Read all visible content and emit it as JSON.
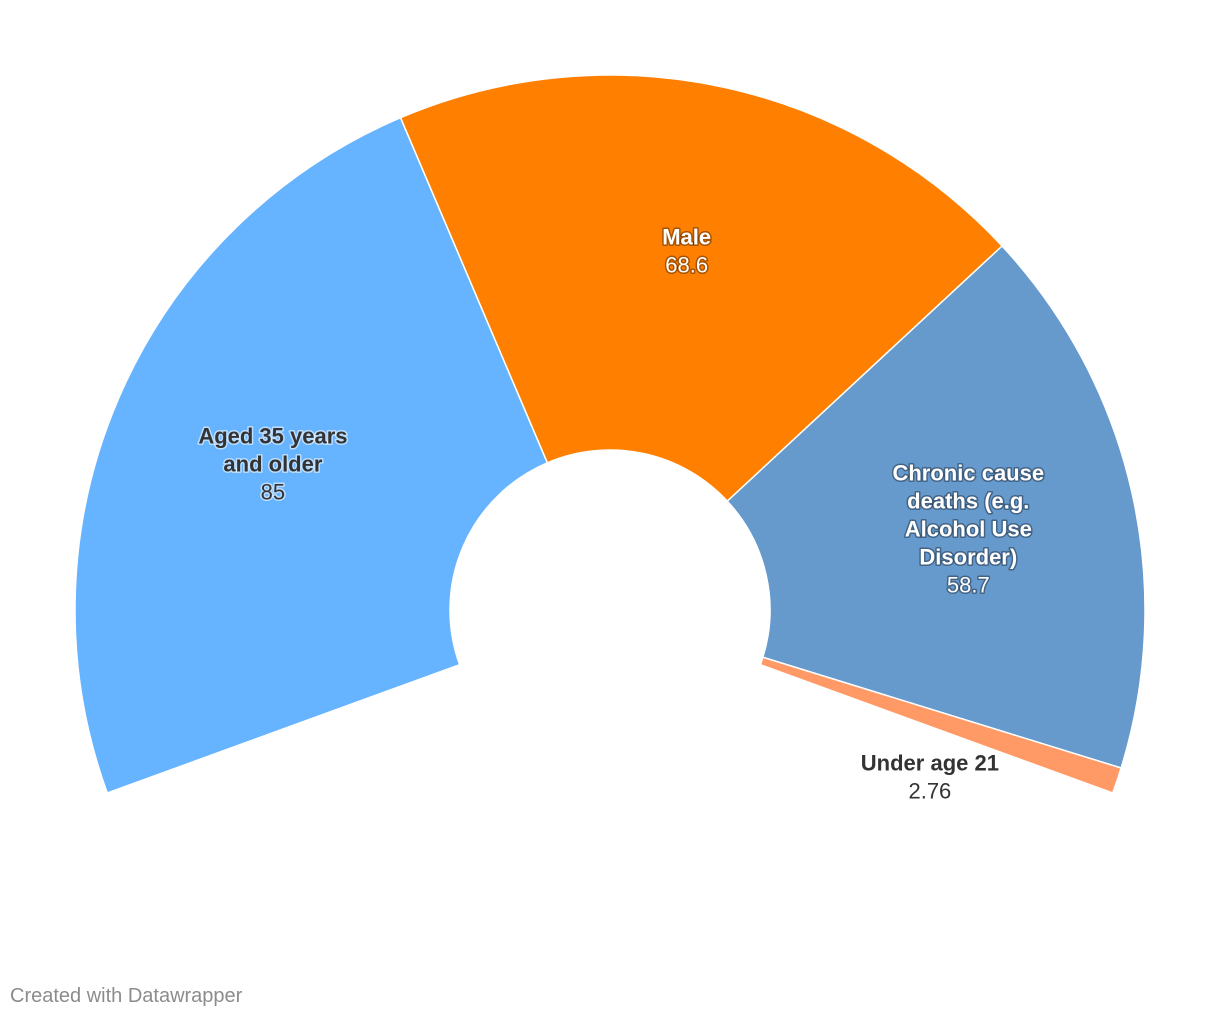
{
  "chart_data": {
    "type": "pie",
    "style": "semi-donut",
    "slices": [
      {
        "name": "Aged 35 years and older",
        "label_lines": [
          "Aged 35 years",
          "and older"
        ],
        "value": 85,
        "value_label": "85",
        "color": "#66b3ff",
        "text_style": "dark"
      },
      {
        "name": "Male",
        "label_lines": [
          "Male"
        ],
        "value": 68.6,
        "value_label": "68.6",
        "color": "#ff7f00",
        "text_style": "light"
      },
      {
        "name": "Chronic cause deaths (e.g. Alcohol Use Disorder)",
        "label_lines": [
          "Chronic cause",
          "deaths (e.g.",
          "Alcohol Use",
          "Disorder)"
        ],
        "value": 58.7,
        "value_label": "58.7",
        "color": "#6699cc",
        "text_style": "light"
      },
      {
        "name": "Under age 21",
        "label_lines": [
          "Under age 21"
        ],
        "value": 2.76,
        "value_label": "2.76",
        "color": "#ff9966",
        "text_style": "dark"
      }
    ]
  },
  "footer": {
    "credit": "Created with Datawrapper"
  }
}
